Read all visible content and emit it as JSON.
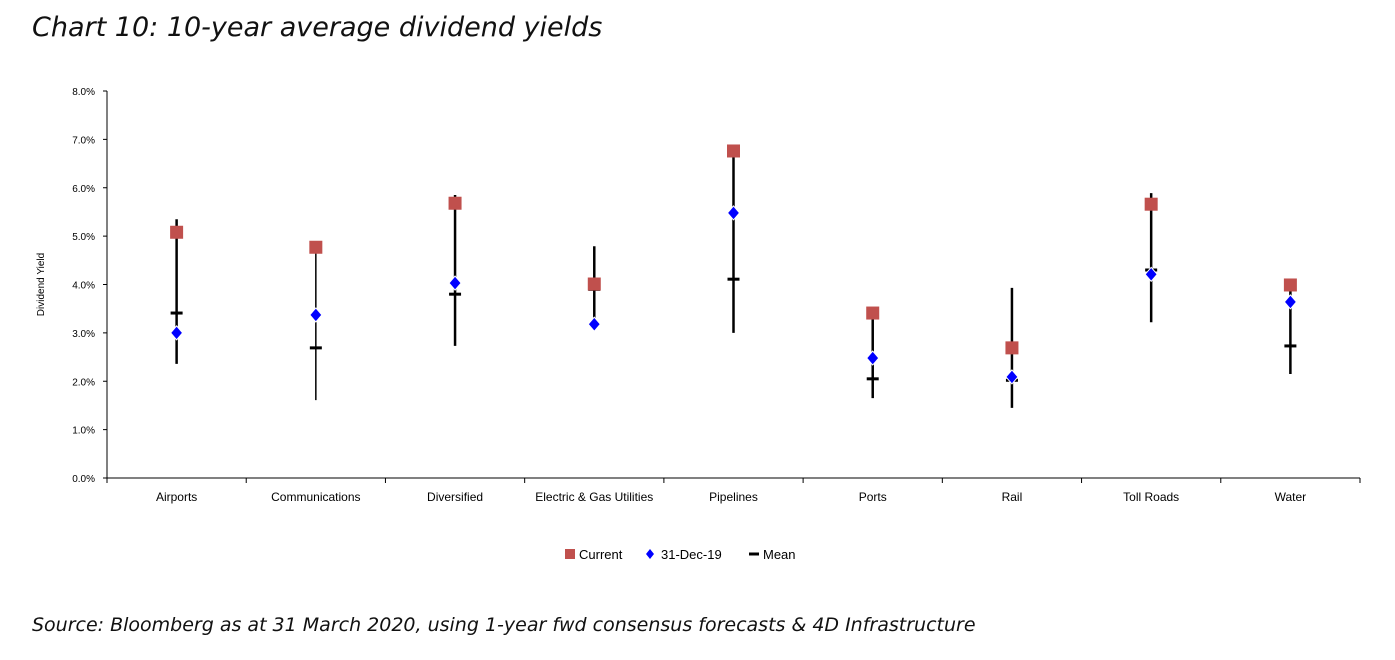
{
  "chart_data": {
    "type": "scatter",
    "title": "Chart 10: 10-year average dividend yields",
    "ylabel": "Dividend Yield",
    "xlabel": "",
    "ylim": [
      0,
      8
    ],
    "yticks": [
      "0.0%",
      "1.0%",
      "2.0%",
      "3.0%",
      "4.0%",
      "5.0%",
      "6.0%",
      "7.0%",
      "8.0%"
    ],
    "categories": [
      "Airports",
      "Communications",
      "Diversified",
      "Electric & Gas Utilities",
      "Pipelines",
      "Ports",
      "Rail",
      "Toll Roads",
      "Water"
    ],
    "range": {
      "high": [
        5.35,
        4.75,
        5.85,
        4.79,
        6.7,
        3.4,
        3.93,
        5.89,
        3.9
      ],
      "low": [
        2.36,
        1.61,
        2.73,
        3.15,
        3.0,
        1.65,
        1.45,
        3.22,
        2.15
      ]
    },
    "series": [
      {
        "name": "Current",
        "marker": "square",
        "color": "#c0504d",
        "values": [
          5.08,
          4.77,
          5.68,
          4.01,
          6.76,
          3.41,
          2.69,
          5.66,
          3.99
        ]
      },
      {
        "name": "31-Dec-19",
        "marker": "diamond",
        "color": "#0000ff",
        "values": [
          3.0,
          3.37,
          4.03,
          3.18,
          5.48,
          2.48,
          2.09,
          4.21,
          3.64
        ]
      },
      {
        "name": "Mean",
        "marker": "dash",
        "color": "#000000",
        "values": [
          3.41,
          2.69,
          3.8,
          3.9,
          4.11,
          2.05,
          2.02,
          4.3,
          2.73
        ]
      }
    ],
    "legend_position": "bottom",
    "grid": false
  },
  "source": "Source: Bloomberg as at 31 March 2020, using 1-year fwd consensus forecasts & 4D Infrastructure"
}
